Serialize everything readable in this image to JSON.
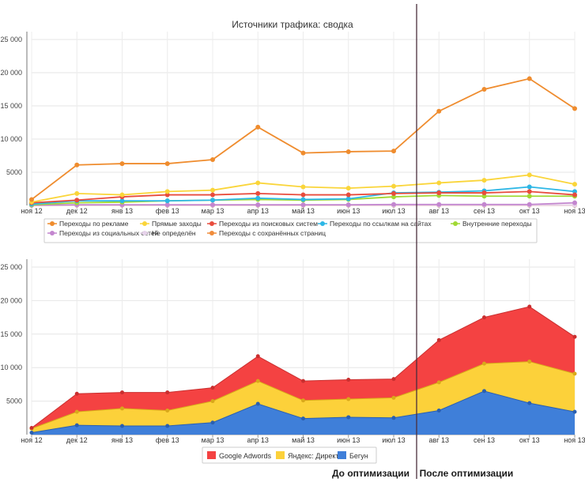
{
  "chart_data": [
    {
      "type": "line",
      "title": "Источники трафика: сводка",
      "xlabel": "",
      "ylabel": "",
      "ylim": [
        0,
        25000
      ],
      "yticks": [
        "25 000",
        "20 000",
        "15 000",
        "10 000",
        "5000"
      ],
      "ytick_values": [
        25000,
        20000,
        15000,
        10000,
        5000
      ],
      "categories": [
        "ноя 12",
        "дек 12",
        "янв 13",
        "фев 13",
        "мар 13",
        "апр 13",
        "май 13",
        "июн 13",
        "июл 13",
        "авг 13",
        "сен 13",
        "окт 13",
        "ноя 13"
      ],
      "legend_position": "bottom",
      "series": [
        {
          "name": "Переходы по рекламе",
          "color": "#ef8c2e",
          "values": [
            900,
            6100,
            6300,
            6300,
            6900,
            11800,
            7900,
            8100,
            8200,
            14200,
            17500,
            19100,
            14600
          ]
        },
        {
          "name": "Прямые заходы",
          "color": "#fad53a",
          "values": [
            500,
            1800,
            1600,
            2100,
            2300,
            3400,
            2800,
            2600,
            2900,
            3400,
            3800,
            4600,
            3200
          ]
        },
        {
          "name": "Переходы из поисковых систем",
          "color": "#e84c3d",
          "values": [
            400,
            800,
            1300,
            1600,
            1600,
            1800,
            1600,
            1600,
            1800,
            1900,
            1900,
            2100,
            1600
          ]
        },
        {
          "name": "Переходы по ссылкам на сайтах",
          "color": "#2db7e6",
          "values": [
            200,
            700,
            700,
            700,
            800,
            1100,
            900,
            1000,
            1900,
            2000,
            2200,
            2800,
            2100
          ]
        },
        {
          "name": "Внутренние переходы",
          "color": "#a1d934",
          "values": [
            100,
            400,
            500,
            700,
            800,
            900,
            800,
            900,
            1300,
            1500,
            1400,
            1400,
            1400
          ]
        },
        {
          "name": "Переходы из социальных сетей",
          "color": "#c386cf",
          "values": [
            50,
            100,
            100,
            100,
            100,
            100,
            100,
            100,
            150,
            150,
            150,
            150,
            400
          ]
        },
        {
          "name": "Не определён",
          "color": "#e6d2ea",
          "values": [
            20,
            50,
            50,
            50,
            50,
            50,
            50,
            50,
            50,
            50,
            50,
            50,
            50
          ]
        },
        {
          "name": "Переходы с сохранённых страниц",
          "color": "#f08c3a",
          "values": [
            20,
            30,
            30,
            30,
            30,
            30,
            30,
            30,
            30,
            30,
            30,
            30,
            30
          ]
        }
      ]
    },
    {
      "type": "area",
      "stacked": true,
      "title": "",
      "xlabel": "",
      "ylabel": "",
      "ylim": [
        0,
        25000
      ],
      "yticks": [
        "25 000",
        "20 000",
        "15 000",
        "10 000",
        "5000"
      ],
      "ytick_values": [
        25000,
        20000,
        15000,
        10000,
        5000
      ],
      "categories": [
        "ноя 12",
        "дек 12",
        "янв 13",
        "фев 13",
        "мар 13",
        "апр 13",
        "май 13",
        "июн 13",
        "июл 13",
        "авг 13",
        "сен 13",
        "окт 13",
        "ноя 13"
      ],
      "legend_position": "bottom",
      "series": [
        {
          "name": "Бегун",
          "color": "#3f7fd9",
          "values": [
            300,
            1400,
            1300,
            1300,
            1800,
            4600,
            2400,
            2600,
            2500,
            3600,
            6500,
            4700,
            3400
          ]
        },
        {
          "name": "Яндекс: Директ",
          "color": "#fcd13a",
          "values": [
            600,
            2000,
            2600,
            2300,
            3200,
            3400,
            2700,
            2700,
            3000,
            4200,
            4100,
            6200,
            5700
          ]
        },
        {
          "name": "Google Adwords",
          "color": "#f44242",
          "values": [
            100,
            2700,
            2400,
            2700,
            2000,
            3700,
            2900,
            2900,
            2800,
            6300,
            6900,
            8200,
            5500
          ]
        }
      ],
      "legend_order": [
        "Google Adwords",
        "Яндекс: Директ",
        "Бегун"
      ]
    }
  ],
  "annotations": {
    "before": "До оптимизации",
    "after": "После оптимизации",
    "split_index": 8.5
  }
}
